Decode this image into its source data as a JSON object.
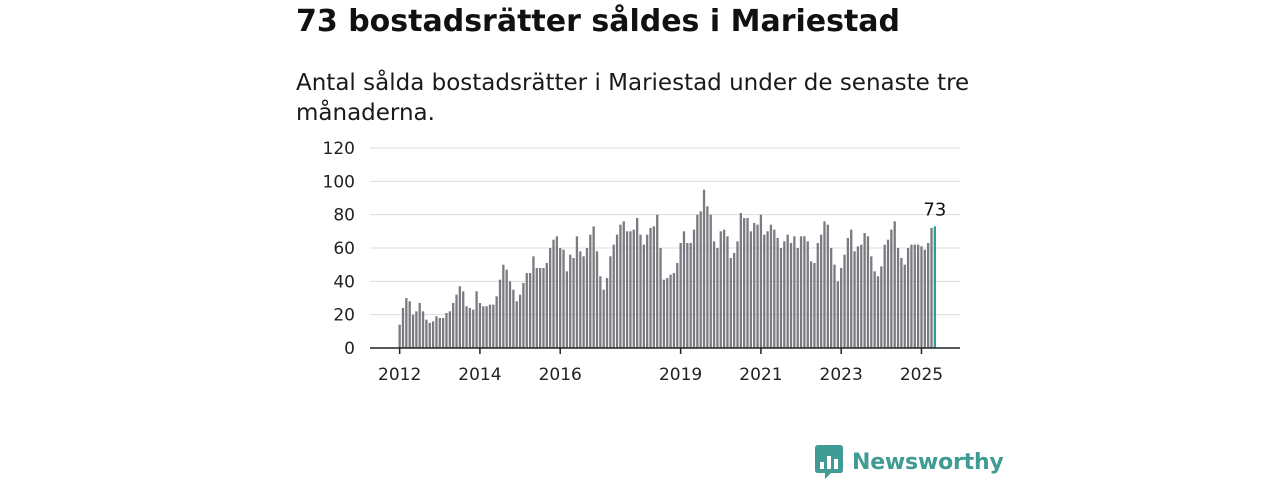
{
  "header": {
    "title": "73 bostadsrätter såldes i Mariestad",
    "subtitle": "Antal sålda bostadsrätter i Mariestad under de senaste tre månaderna."
  },
  "logo": {
    "text": "Newsworthy",
    "icon": "newsworthy-chart-logo-icon",
    "color": "#3f9b94"
  },
  "chart_data": {
    "type": "bar",
    "title": "",
    "xlabel": "",
    "ylabel": "",
    "ylim": [
      0,
      120
    ],
    "yticks": [
      "0",
      "20",
      "40",
      "60",
      "80",
      "100",
      "120"
    ],
    "xtick_labels": [
      "2012",
      "2014",
      "2016",
      "2019",
      "2021",
      "2023",
      "2025"
    ],
    "grid": true,
    "colors": {
      "bar": "#7a7a80",
      "highlight": "#2aa198",
      "grid": "#dddddd",
      "axis": "#222222"
    },
    "start": "2012-01",
    "x_first": "2012-01",
    "x_last": "2025-09",
    "last_value_label": "73",
    "values": [
      14,
      24,
      30,
      28,
      20,
      22,
      27,
      22,
      17,
      15,
      16,
      19,
      18,
      18,
      21,
      22,
      27,
      32,
      37,
      34,
      25,
      24,
      23,
      34,
      27,
      25,
      25,
      26,
      26,
      31,
      41,
      50,
      47,
      40,
      35,
      28,
      32,
      39,
      45,
      45,
      55,
      48,
      48,
      48,
      51,
      60,
      65,
      67,
      60,
      59,
      46,
      56,
      54,
      67,
      58,
      55,
      60,
      68,
      73,
      58,
      43,
      35,
      42,
      55,
      62,
      68,
      74,
      76,
      70,
      70,
      71,
      78,
      68,
      62,
      68,
      72,
      73,
      80,
      60,
      41,
      42,
      44,
      45,
      51,
      63,
      70,
      63,
      63,
      71,
      80,
      82,
      95,
      85,
      80,
      64,
      60,
      70,
      71,
      67,
      54,
      57,
      64,
      81,
      78,
      78,
      70,
      75,
      74,
      80,
      68,
      70,
      74,
      71,
      66,
      60,
      64,
      68,
      63,
      67,
      60,
      67,
      67,
      64,
      52,
      51,
      63,
      68,
      76,
      74,
      60,
      50,
      40,
      48,
      56,
      66,
      71,
      58,
      61,
      62,
      69,
      67,
      55,
      46,
      43,
      49,
      62,
      65,
      71,
      76,
      60,
      54,
      50,
      60,
      62,
      62,
      62,
      61,
      59,
      63,
      72,
      73
    ]
  }
}
